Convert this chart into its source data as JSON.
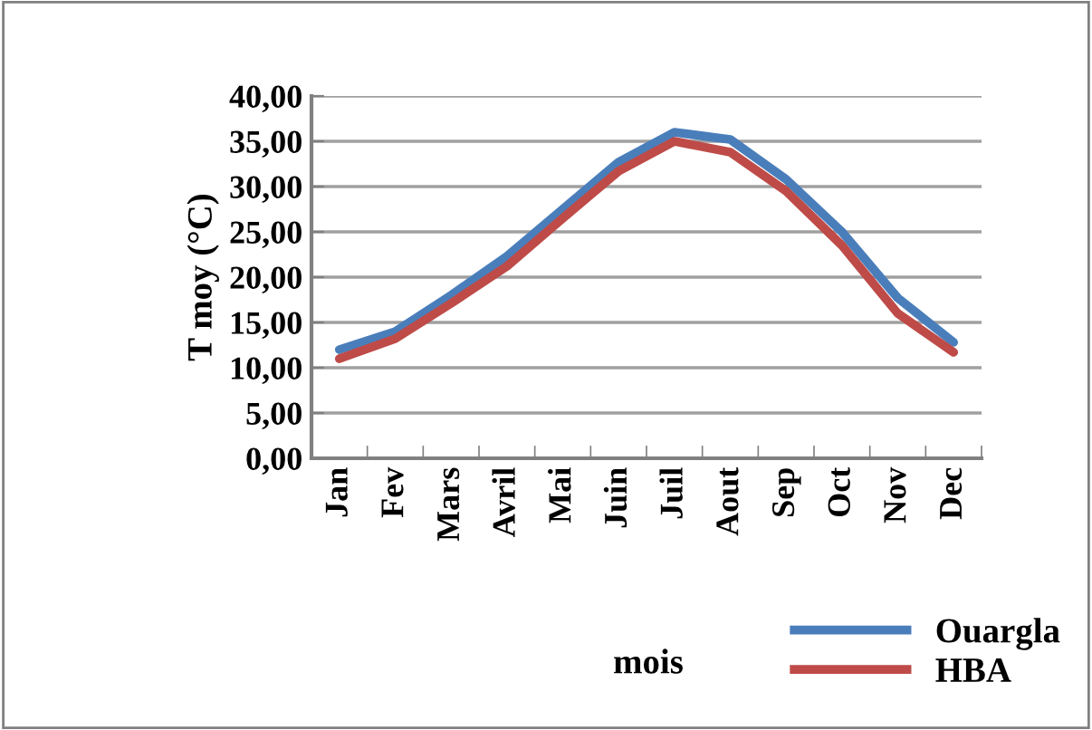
{
  "chart_data": {
    "type": "line",
    "xlabel": "mois",
    "ylabel": "T moy (°C)",
    "categories": [
      "Jan",
      "Fev",
      "Mars",
      "Avril",
      "Mai",
      "Juin",
      "Juil",
      "Aout",
      "Sep",
      "Oct",
      "Nov",
      "Dec"
    ],
    "series": [
      {
        "name": "Ouargla",
        "color": "#4a7ebb",
        "values": [
          12.0,
          14.0,
          18.0,
          22.3,
          27.5,
          32.7,
          36.0,
          35.2,
          30.8,
          25.0,
          17.7,
          12.8
        ]
      },
      {
        "name": "HBA",
        "color": "#be4b48",
        "values": [
          11.0,
          13.2,
          17.1,
          21.2,
          26.5,
          31.7,
          35.0,
          33.8,
          29.5,
          23.5,
          16.0,
          11.7
        ]
      }
    ],
    "ylim": [
      0,
      40
    ],
    "yticks": [
      {
        "value": 0,
        "label": "0,00"
      },
      {
        "value": 5,
        "label": "5,00"
      },
      {
        "value": 10,
        "label": "10,00"
      },
      {
        "value": 15,
        "label": "15,00"
      },
      {
        "value": 20,
        "label": "20,00"
      },
      {
        "value": 25,
        "label": "25,00"
      },
      {
        "value": 30,
        "label": "30,00"
      },
      {
        "value": 35,
        "label": "35,00"
      },
      {
        "value": 40,
        "label": "40,00"
      }
    ],
    "grid": "y",
    "legend": "bottom right",
    "marker": "none",
    "line_style": "solid"
  }
}
